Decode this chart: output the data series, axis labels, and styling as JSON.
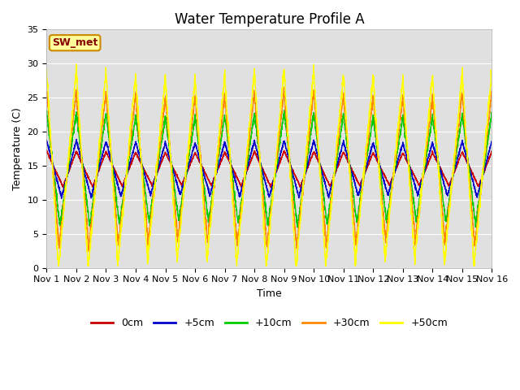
{
  "title": "Water Temperature Profile A",
  "xlabel": "Time",
  "ylabel": "Temperature (C)",
  "ylim": [
    0,
    35
  ],
  "xlim": [
    0,
    15
  ],
  "xtick_labels": [
    "Nov 1",
    "Nov 2",
    "Nov 3",
    "Nov 4",
    "Nov 5",
    "Nov 6",
    "Nov 7",
    "Nov 8",
    "Nov 9",
    "Nov 10",
    "Nov 11",
    "Nov 12",
    "Nov 13",
    "Nov 14",
    "Nov 15",
    "Nov 16"
  ],
  "ytick_values": [
    0,
    5,
    10,
    15,
    20,
    25,
    30,
    35
  ],
  "series": [
    {
      "label": "0cm",
      "color": "#cc0000",
      "mean": 14.5,
      "amp": 2.5,
      "phase_shift": 0.55
    },
    {
      "label": "+5cm",
      "color": "#0000cc",
      "mean": 14.5,
      "amp": 4.0,
      "phase_shift": 0.5
    },
    {
      "label": "+10cm",
      "color": "#00cc00",
      "mean": 14.5,
      "amp": 8.0,
      "phase_shift": 0.45
    },
    {
      "label": "+30cm",
      "color": "#ff8800",
      "mean": 14.5,
      "amp": 11.0,
      "phase_shift": 0.42
    },
    {
      "label": "+50cm",
      "color": "#ffff00",
      "mean": 14.5,
      "amp": 14.0,
      "phase_shift": 0.4
    }
  ],
  "annotation_text": "SW_met",
  "annotation_box_color": "#ffff99",
  "annotation_text_color": "#880000",
  "annotation_box_edge_color": "#cc8800",
  "background_color": "#e0e0e0",
  "figure_bg": "#ffffff",
  "grid_color": "#ffffff",
  "title_fontsize": 12,
  "axis_label_fontsize": 9,
  "tick_fontsize": 8,
  "legend_fontsize": 9,
  "figsize": [
    6.4,
    4.8
  ],
  "dpi": 100
}
